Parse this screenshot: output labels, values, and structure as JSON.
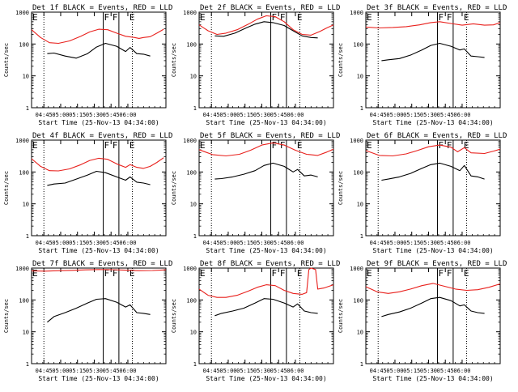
{
  "chart_data": [
    {
      "type": "line",
      "title": "Det 1f BLACK = Events, RED = LLD",
      "xlabel": "Start Time (25-Nov-13 04:34:00)",
      "ylabel": "Counts/sec",
      "yscale": "log",
      "ylim": [
        1,
        1000
      ],
      "xticks": [
        "04:45",
        "05:00",
        "05:15",
        "05:30",
        "05:45",
        "06:00"
      ],
      "yticks": [
        "1",
        "10",
        "100",
        "1000"
      ],
      "markers": [
        "F",
        "F",
        "E",
        "E"
      ],
      "series": [
        {
          "name": "BLACK = Events",
          "color": "#000000",
          "x": [
            14,
            20,
            30,
            40,
            50,
            58,
            66,
            76,
            84,
            88,
            94,
            100,
            106
          ],
          "y": [
            50,
            52,
            42,
            36,
            50,
            80,
            105,
            85,
            58,
            78,
            50,
            48,
            42
          ]
        },
        {
          "name": "RED = LLD",
          "color": "#e8201c",
          "x": [
            0,
            8,
            16,
            24,
            34,
            44,
            52,
            60,
            68,
            76,
            84,
            92,
            96,
            100,
            106,
            112,
            118
          ],
          "y": [
            280,
            160,
            110,
            105,
            125,
            175,
            240,
            290,
            280,
            220,
            175,
            160,
            150,
            160,
            170,
            220,
            290
          ]
        }
      ]
    },
    {
      "type": "line",
      "title": "Det 2f BLACK = Events, RED = LLD",
      "xlabel": "Start Time (25-Nov-13 04:34:00)",
      "ylabel": "Counts/sec",
      "yscale": "log",
      "ylim": [
        1,
        1000
      ],
      "xticks": [
        "04:45",
        "05:00",
        "05:15",
        "05:30",
        "05:45",
        "06:00"
      ],
      "yticks": [
        "1",
        "10",
        "100",
        "1000"
      ],
      "markers": [
        "F",
        "F",
        "E",
        "E"
      ],
      "series": [
        {
          "name": "BLACK = Events",
          "color": "#000000",
          "x": [
            14,
            22,
            32,
            42,
            50,
            58,
            66,
            76,
            84,
            92,
            100,
            106
          ],
          "y": [
            180,
            175,
            220,
            320,
            420,
            500,
            470,
            380,
            260,
            180,
            160,
            155
          ]
        },
        {
          "name": "RED = LLD",
          "color": "#e8201c",
          "x": [
            0,
            8,
            16,
            24,
            34,
            44,
            52,
            60,
            68,
            76,
            84,
            92,
            100,
            108,
            114,
            120
          ],
          "y": [
            400,
            260,
            200,
            220,
            280,
            420,
            600,
            770,
            720,
            500,
            280,
            200,
            190,
            250,
            320,
            400
          ]
        }
      ]
    },
    {
      "type": "line",
      "title": "Det 3f BLACK = Events, RED = LLD",
      "xlabel": "Start Time (25-Nov-13 04:34:00)",
      "ylabel": "Counts/sec",
      "yscale": "log",
      "ylim": [
        1,
        1000
      ],
      "xticks": [
        "04:45",
        "05:00",
        "05:15",
        "05:30",
        "05:45",
        "06:00"
      ],
      "yticks": [
        "1",
        "10",
        "100",
        "1000"
      ],
      "markers": [
        "F",
        "F",
        "E",
        "E"
      ],
      "series": [
        {
          "name": "BLACK = Events",
          "color": "#000000",
          "x": [
            14,
            20,
            30,
            40,
            50,
            58,
            66,
            76,
            84,
            88,
            94,
            100,
            106
          ],
          "y": [
            30,
            32,
            35,
            45,
            65,
            90,
            105,
            85,
            65,
            70,
            42,
            40,
            38
          ]
        },
        {
          "name": "RED = LLD",
          "color": "#e8201c",
          "x": [
            0,
            12,
            24,
            36,
            48,
            58,
            66,
            76,
            86,
            96,
            106,
            114,
            120
          ],
          "y": [
            340,
            320,
            330,
            350,
            400,
            470,
            500,
            440,
            390,
            430,
            390,
            400,
            470
          ]
        }
      ]
    },
    {
      "type": "line",
      "title": "Det 4f BLACK = Events, RED = LLD",
      "xlabel": "Start Time (25-Nov-13 04:34:00)",
      "ylabel": "Counts/sec",
      "yscale": "log",
      "ylim": [
        1,
        1000
      ],
      "xticks": [
        "04:45",
        "05:00",
        "05:15",
        "05:30",
        "05:45",
        "06:00"
      ],
      "yticks": [
        "1",
        "10",
        "100",
        "1000"
      ],
      "markers": [
        "F",
        "F",
        "E",
        "E"
      ],
      "series": [
        {
          "name": "BLACK = Events",
          "color": "#000000",
          "x": [
            14,
            20,
            30,
            40,
            50,
            58,
            66,
            76,
            84,
            88,
            94,
            100,
            106
          ],
          "y": [
            38,
            42,
            45,
            60,
            80,
            105,
            95,
            70,
            55,
            70,
            48,
            45,
            40
          ]
        },
        {
          "name": "RED = LLD",
          "color": "#e8201c",
          "x": [
            0,
            8,
            16,
            24,
            34,
            44,
            52,
            60,
            68,
            76,
            84,
            88,
            94,
            100,
            106,
            112,
            118
          ],
          "y": [
            260,
            150,
            110,
            108,
            125,
            170,
            230,
            270,
            250,
            180,
            140,
            170,
            140,
            130,
            150,
            200,
            280
          ]
        }
      ]
    },
    {
      "type": "line",
      "title": "Det 5f BLACK = Events, RED = LLD",
      "xlabel": "Start Time (25-Nov-13 04:34:00)",
      "ylabel": "Counts/sec",
      "yscale": "log",
      "ylim": [
        1,
        1000
      ],
      "xticks": [
        "04:45",
        "05:00",
        "05:15",
        "05:30",
        "05:45",
        "06:00"
      ],
      "yticks": [
        "1",
        "10",
        "100",
        "1000"
      ],
      "markers": [
        "F",
        "F",
        "E",
        "E"
      ],
      "series": [
        {
          "name": "BLACK = Events",
          "color": "#000000",
          "x": [
            14,
            20,
            30,
            40,
            50,
            58,
            66,
            76,
            84,
            88,
            94,
            100,
            106
          ],
          "y": [
            60,
            62,
            70,
            85,
            110,
            160,
            190,
            150,
            100,
            120,
            75,
            80,
            70
          ]
        },
        {
          "name": "RED = LLD",
          "color": "#e8201c",
          "x": [
            0,
            12,
            24,
            36,
            46,
            56,
            66,
            76,
            86,
            96,
            106,
            114,
            120
          ],
          "y": [
            500,
            350,
            320,
            360,
            480,
            700,
            820,
            700,
            480,
            360,
            330,
            420,
            520
          ]
        }
      ]
    },
    {
      "type": "line",
      "title": "Det 6f BLACK = Events, RED = LLD",
      "xlabel": "Start Time (25-Nov-13 04:34:00)",
      "ylabel": "Counts/sec",
      "yscale": "log",
      "ylim": [
        1,
        1000
      ],
      "xticks": [
        "04:45",
        "05:00",
        "05:15",
        "05:30",
        "05:45",
        "06:00"
      ],
      "yticks": [
        "1",
        "10",
        "100",
        "1000"
      ],
      "markers": [
        "F",
        "F",
        "E",
        "E"
      ],
      "series": [
        {
          "name": "BLACK = Events",
          "color": "#000000",
          "x": [
            14,
            20,
            30,
            40,
            50,
            58,
            66,
            76,
            84,
            88,
            94,
            100,
            106
          ],
          "y": [
            55,
            60,
            70,
            90,
            130,
            170,
            190,
            150,
            110,
            160,
            75,
            70,
            60
          ]
        },
        {
          "name": "RED = LLD",
          "color": "#e8201c",
          "x": [
            0,
            12,
            24,
            36,
            46,
            56,
            66,
            76,
            82,
            88,
            94,
            106,
            114,
            120
          ],
          "y": [
            470,
            330,
            320,
            370,
            470,
            620,
            700,
            600,
            430,
            580,
            400,
            380,
            450,
            520
          ]
        }
      ]
    },
    {
      "type": "line",
      "title": "Det 7f BLACK = Events, RED = LLD",
      "xlabel": "Start Time (25-Nov-13 04:34:00)",
      "ylabel": "Counts/sec",
      "yscale": "log",
      "ylim": [
        1,
        1000
      ],
      "xticks": [
        "04:45",
        "05:00",
        "05:15",
        "05:30",
        "05:45",
        "06:00"
      ],
      "yticks": [
        "1",
        "10",
        "100",
        "1000"
      ],
      "markers": [
        "F",
        "F",
        "E",
        "E"
      ],
      "series": [
        {
          "name": "BLACK = Events",
          "color": "#000000",
          "x": [
            14,
            20,
            30,
            40,
            50,
            58,
            66,
            76,
            84,
            88,
            94,
            100,
            106
          ],
          "y": [
            20,
            30,
            40,
            55,
            80,
            105,
            110,
            85,
            60,
            70,
            40,
            38,
            35
          ]
        },
        {
          "name": "RED = LLD",
          "color": "#e8201c",
          "x": [
            0,
            12,
            24,
            36,
            48,
            60,
            72,
            84,
            96,
            108,
            120
          ],
          "y": [
            820,
            800,
            830,
            850,
            880,
            900,
            890,
            860,
            830,
            840,
            880
          ]
        }
      ]
    },
    {
      "type": "line",
      "title": "Det 8f BLACK = Events, RED = LLD",
      "xlabel": "Start Time (25-Nov-13 04:34:00)",
      "ylabel": "Counts/sec",
      "yscale": "log",
      "ylim": [
        1,
        1000
      ],
      "xticks": [
        "04:45",
        "05:00",
        "05:15",
        "05:30",
        "05:45",
        "06:00"
      ],
      "yticks": [
        "1",
        "10",
        "100",
        "1000"
      ],
      "markers": [
        "F",
        "F",
        "E",
        "E"
      ],
      "series": [
        {
          "name": "BLACK = Events",
          "color": "#000000",
          "x": [
            14,
            20,
            30,
            40,
            50,
            58,
            66,
            76,
            84,
            88,
            94,
            100,
            106
          ],
          "y": [
            32,
            38,
            45,
            55,
            80,
            110,
            105,
            80,
            60,
            75,
            45,
            40,
            38
          ]
        },
        {
          "name": "RED = LLD",
          "color": "#e8201c",
          "x": [
            0,
            8,
            16,
            24,
            34,
            44,
            52,
            60,
            68,
            76,
            84,
            92,
            96,
            98,
            100,
            104,
            106,
            112,
            120
          ],
          "y": [
            220,
            140,
            120,
            120,
            140,
            190,
            250,
            300,
            280,
            200,
            160,
            150,
            170,
            900,
            1000,
            900,
            220,
            240,
            300
          ]
        }
      ]
    },
    {
      "type": "line",
      "title": "Det 9f BLACK = Events, RED = LLD",
      "xlabel": "Start Time (25-Nov-13 04:34:00)",
      "ylabel": "Counts/sec",
      "yscale": "log",
      "ylim": [
        1,
        1000
      ],
      "xticks": [
        "04:45",
        "05:00",
        "05:15",
        "05:30",
        "05:45",
        "06:00"
      ],
      "yticks": [
        "1",
        "10",
        "100",
        "1000"
      ],
      "markers": [
        "F",
        "F",
        "E",
        "E"
      ],
      "series": [
        {
          "name": "BLACK = Events",
          "color": "#000000",
          "x": [
            14,
            20,
            30,
            40,
            50,
            58,
            66,
            76,
            84,
            88,
            94,
            100,
            106
          ],
          "y": [
            30,
            35,
            42,
            55,
            80,
            110,
            120,
            95,
            65,
            70,
            45,
            40,
            38
          ]
        },
        {
          "name": "RED = LLD",
          "color": "#e8201c",
          "x": [
            0,
            10,
            20,
            30,
            40,
            50,
            60,
            70,
            80,
            90,
            100,
            110,
            120
          ],
          "y": [
            260,
            180,
            160,
            180,
            220,
            280,
            330,
            270,
            220,
            200,
            210,
            250,
            320
          ]
        }
      ]
    }
  ]
}
